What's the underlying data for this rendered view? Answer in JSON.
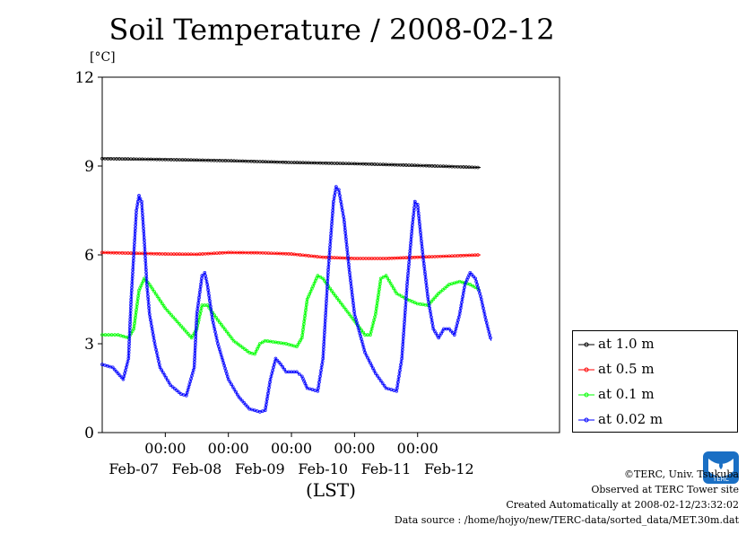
{
  "title": "Soil Temperature / 2008-02-12",
  "unit_label": "[°C]",
  "xaxis_label": "(LST)",
  "legend": [
    {
      "label": "at 1.0 m",
      "color": "#000000"
    },
    {
      "label": "at 0.5 m",
      "color": "#ff0000"
    },
    {
      "label": "at 0.1 m",
      "color": "#00ff00"
    },
    {
      "label": "at 0.02 m",
      "color": "#0000ff"
    }
  ],
  "footer": {
    "copyright": "©TERC, Univ. Tsukuba",
    "observed": "Observed at TERC Tower site",
    "created": "Created Automatically at 2008-02-12/23:32:02",
    "source": "Data source : /home/hojyo/new/TERC-data/sorted_data/MET.30m.dat"
  },
  "logo_text": "TERC",
  "chart_data": {
    "type": "line",
    "title": "Soil Temperature / 2008-02-12",
    "ylabel": "[°C]",
    "xlabel": "(LST)",
    "ylim": [
      0,
      12
    ],
    "yticks": [
      0,
      3,
      6,
      9,
      12
    ],
    "xlim_hours": [
      -24,
      96
    ],
    "x_tick_labels": [
      "00:00",
      "00:00",
      "00:00",
      "00:00",
      "00:00"
    ],
    "x_tick_hours": [
      0,
      24,
      48,
      72,
      96
    ],
    "date_labels": [
      "Feb-07",
      "Feb-08",
      "Feb-09",
      "Feb-10",
      "Feb-11",
      "Feb-12"
    ],
    "date_label_hours": [
      12,
      36,
      60,
      84,
      108,
      132
    ],
    "grid": true,
    "legend_position": "right-bottom",
    "series": [
      {
        "name": "at 1.0 m",
        "color": "#000000",
        "points": [
          [
            0,
            9.25
          ],
          [
            24,
            9.22
          ],
          [
            48,
            9.18
          ],
          [
            72,
            9.12
          ],
          [
            96,
            9.08
          ],
          [
            120,
            9.02
          ],
          [
            144,
            8.95
          ]
        ]
      },
      {
        "name": "at 0.5 m",
        "color": "#ff0000",
        "points": [
          [
            0,
            6.08
          ],
          [
            24,
            6.03
          ],
          [
            36,
            6.02
          ],
          [
            48,
            6.08
          ],
          [
            60,
            6.07
          ],
          [
            72,
            6.03
          ],
          [
            84,
            5.92
          ],
          [
            96,
            5.88
          ],
          [
            108,
            5.88
          ],
          [
            120,
            5.92
          ],
          [
            132,
            5.96
          ],
          [
            144,
            6.0
          ]
        ]
      },
      {
        "name": "at 0.1 m",
        "color": "#00ff00",
        "points": [
          [
            0,
            3.3
          ],
          [
            6,
            3.3
          ],
          [
            10,
            3.2
          ],
          [
            12,
            3.5
          ],
          [
            14,
            4.8
          ],
          [
            16,
            5.2
          ],
          [
            18,
            5.0
          ],
          [
            24,
            4.2
          ],
          [
            30,
            3.6
          ],
          [
            34,
            3.2
          ],
          [
            36,
            3.5
          ],
          [
            38,
            4.3
          ],
          [
            40,
            4.3
          ],
          [
            44,
            3.8
          ],
          [
            50,
            3.1
          ],
          [
            56,
            2.7
          ],
          [
            58,
            2.65
          ],
          [
            60,
            3.0
          ],
          [
            62,
            3.1
          ],
          [
            66,
            3.05
          ],
          [
            70,
            3.0
          ],
          [
            74,
            2.9
          ],
          [
            76,
            3.2
          ],
          [
            78,
            4.5
          ],
          [
            82,
            5.3
          ],
          [
            84,
            5.2
          ],
          [
            88,
            4.7
          ],
          [
            94,
            4.0
          ],
          [
            100,
            3.3
          ],
          [
            102,
            3.3
          ],
          [
            104,
            4.0
          ],
          [
            106,
            5.2
          ],
          [
            108,
            5.3
          ],
          [
            112,
            4.7
          ],
          [
            116,
            4.5
          ],
          [
            120,
            4.35
          ],
          [
            124,
            4.3
          ],
          [
            128,
            4.7
          ],
          [
            132,
            5.0
          ],
          [
            136,
            5.1
          ],
          [
            140,
            5.0
          ],
          [
            144,
            4.8
          ]
        ]
      },
      {
        "name": "at 0.02 m",
        "color": "#0000ff",
        "points": [
          [
            0,
            2.3
          ],
          [
            4,
            2.2
          ],
          [
            8,
            1.8
          ],
          [
            10,
            2.5
          ],
          [
            11,
            4.5
          ],
          [
            12,
            6.0
          ],
          [
            13,
            7.5
          ],
          [
            14,
            8.0
          ],
          [
            15,
            7.8
          ],
          [
            16,
            6.5
          ],
          [
            17,
            5.0
          ],
          [
            18,
            4.0
          ],
          [
            20,
            3.0
          ],
          [
            22,
            2.2
          ],
          [
            26,
            1.6
          ],
          [
            30,
            1.3
          ],
          [
            32,
            1.25
          ],
          [
            35,
            2.2
          ],
          [
            36,
            4.0
          ],
          [
            38,
            5.3
          ],
          [
            39,
            5.4
          ],
          [
            40,
            5.0
          ],
          [
            42,
            3.8
          ],
          [
            44,
            3.0
          ],
          [
            48,
            1.8
          ],
          [
            52,
            1.2
          ],
          [
            56,
            0.8
          ],
          [
            60,
            0.7
          ],
          [
            62,
            0.75
          ],
          [
            64,
            1.8
          ],
          [
            66,
            2.5
          ],
          [
            68,
            2.3
          ],
          [
            70,
            2.05
          ],
          [
            74,
            2.05
          ],
          [
            76,
            1.9
          ],
          [
            78,
            1.5
          ],
          [
            82,
            1.4
          ],
          [
            84,
            2.5
          ],
          [
            86,
            5.5
          ],
          [
            88,
            7.8
          ],
          [
            89,
            8.3
          ],
          [
            90,
            8.2
          ],
          [
            92,
            7.2
          ],
          [
            94,
            5.5
          ],
          [
            96,
            4.0
          ],
          [
            100,
            2.7
          ],
          [
            104,
            2.0
          ],
          [
            108,
            1.5
          ],
          [
            112,
            1.4
          ],
          [
            114,
            2.5
          ],
          [
            116,
            5.0
          ],
          [
            118,
            7.0
          ],
          [
            119,
            7.8
          ],
          [
            120,
            7.7
          ],
          [
            122,
            6.0
          ],
          [
            124,
            4.5
          ],
          [
            126,
            3.5
          ],
          [
            128,
            3.2
          ],
          [
            130,
            3.5
          ],
          [
            132,
            3.5
          ],
          [
            134,
            3.3
          ],
          [
            136,
            4.0
          ],
          [
            138,
            5.0
          ],
          [
            140,
            5.4
          ],
          [
            142,
            5.2
          ],
          [
            144,
            4.6
          ],
          [
            146,
            3.8
          ],
          [
            148,
            3.1
          ]
        ]
      }
    ]
  }
}
